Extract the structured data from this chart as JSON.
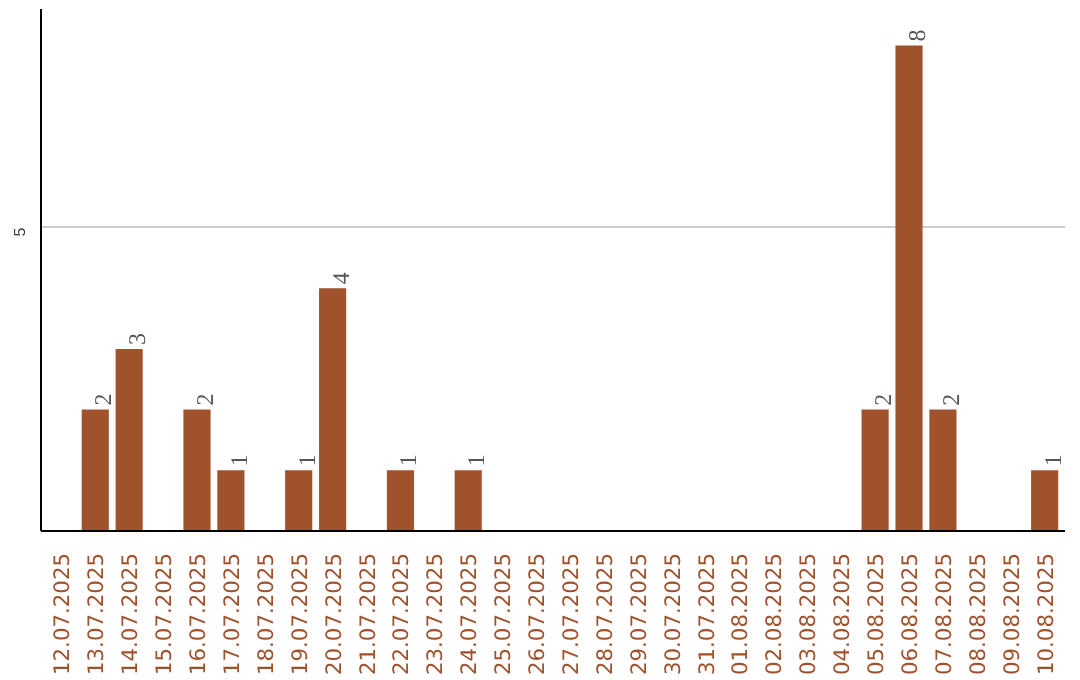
{
  "chart_data": {
    "type": "bar",
    "categories": [
      "12.07.2025",
      "13.07.2025",
      "14.07.2025",
      "15.07.2025",
      "16.07.2025",
      "17.07.2025",
      "18.07.2025",
      "19.07.2025",
      "20.07.2025",
      "21.07.2025",
      "22.07.2025",
      "23.07.2025",
      "24.07.2025",
      "25.07.2025",
      "26.07.2025",
      "27.07.2025",
      "28.07.2025",
      "29.07.2025",
      "30.07.2025",
      "31.07.2025",
      "01.08.2025",
      "02.08.2025",
      "03.08.2025",
      "04.08.2025",
      "05.08.2025",
      "06.08.2025",
      "07.08.2025",
      "08.08.2025",
      "09.08.2025",
      "10.08.2025"
    ],
    "values": [
      0,
      2,
      3,
      0,
      2,
      1,
      0,
      1,
      4,
      0,
      1,
      0,
      1,
      0,
      0,
      0,
      0,
      0,
      0,
      0,
      0,
      0,
      0,
      0,
      2,
      8,
      2,
      0,
      0,
      1
    ],
    "value_labels": [
      null,
      "2",
      "3",
      null,
      "2",
      "1",
      null,
      "1",
      "4",
      null,
      "1",
      null,
      "1",
      null,
      null,
      null,
      null,
      null,
      null,
      null,
      null,
      null,
      null,
      null,
      "2",
      "8",
      "2",
      null,
      null,
      "1"
    ],
    "color": "#a0522d",
    "ylim": [
      0,
      8.6
    ],
    "yticks": [
      5
    ],
    "grid": "y"
  }
}
